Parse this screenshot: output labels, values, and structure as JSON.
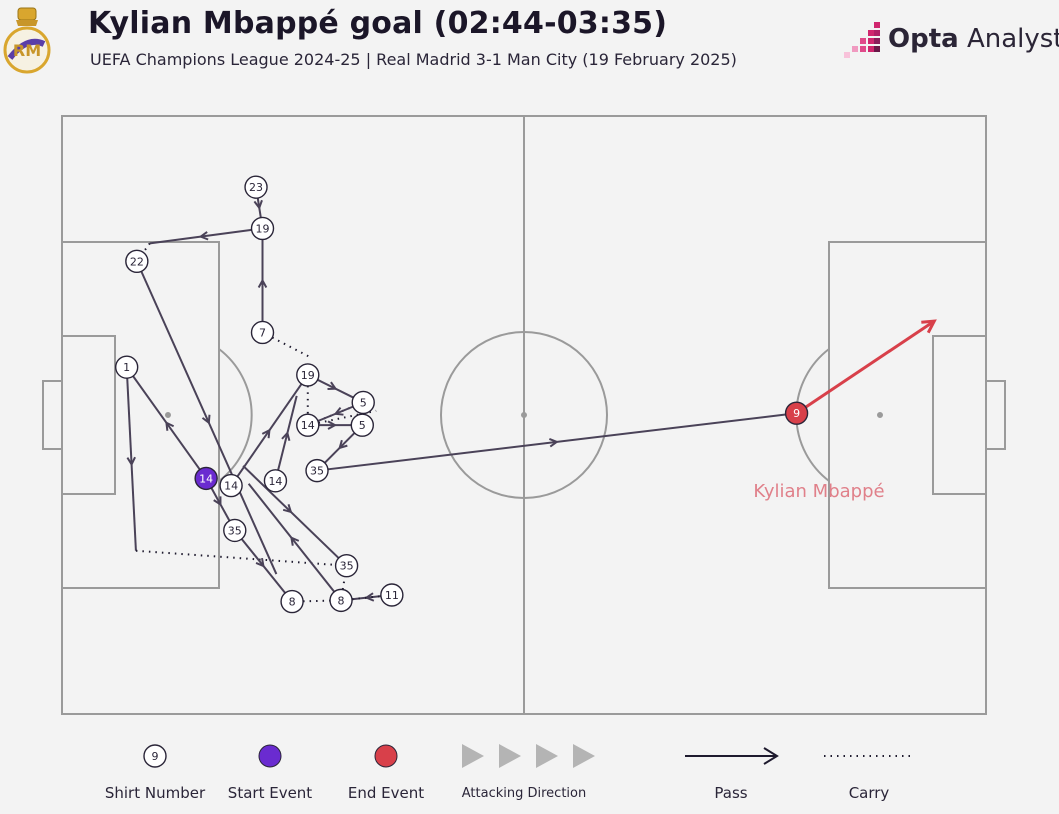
{
  "header": {
    "title": "Kylian Mbappé goal (02:44-03:35)",
    "subtitle": "UEFA Champions League 2024-25 | Real Madrid 3-1 Man City (19 February 2025)",
    "brand_bold": "Opta",
    "brand_light": " Analyst",
    "crest_icon": "real-madrid-crest-icon",
    "brand_icon": "opta-pixel-logo-icon"
  },
  "colors": {
    "background": "#f3f3f3",
    "pitch_lines": "#9a9a9a",
    "pass": "#4a4258",
    "start": "#6a2bd0",
    "end": "#d8404a",
    "end_label": "#e0808a",
    "brand_accent": "#d0266e"
  },
  "pitch": {
    "pitch_length_m": 105,
    "pitch_width_m": 68,
    "attacking_direction": "left-to-right"
  },
  "events": [
    {
      "type": "pass",
      "from": "n23",
      "to": "n19a"
    },
    {
      "type": "pass",
      "from": "n19a",
      "to": "c_left"
    },
    {
      "type": "carry",
      "from": "c_left",
      "to": "n22"
    },
    {
      "type": "pass",
      "from": "n22",
      "to": "p_down22"
    },
    {
      "type": "pass",
      "from": "n7",
      "to": "n19a"
    },
    {
      "type": "carry",
      "from": "n7",
      "to": "p_diag"
    },
    {
      "type": "pass",
      "from": "n1",
      "to": "p_lowleft"
    },
    {
      "type": "carry",
      "from": "p_lowleft",
      "to": "n35b"
    },
    {
      "type": "pass",
      "from": "n14s",
      "to": "n1"
    },
    {
      "type": "pass",
      "from": "n14s",
      "to": "n35a"
    },
    {
      "type": "pass",
      "from": "n35a",
      "to": "n8a"
    },
    {
      "type": "carry",
      "from": "n8a",
      "to": "n8b"
    },
    {
      "type": "pass",
      "from": "n11",
      "to": "n8b"
    },
    {
      "type": "carry",
      "from": "n8b",
      "to": "n11"
    },
    {
      "type": "carry",
      "from": "n8b",
      "to": "n35b"
    },
    {
      "type": "pass",
      "from": "n8b",
      "to": "p_up8"
    },
    {
      "type": "pass",
      "from": "p_8low",
      "to": "n35b"
    },
    {
      "type": "pass",
      "from": "n14b",
      "to": "n19b"
    },
    {
      "type": "pass",
      "from": "n14c",
      "to": "p_14cup"
    },
    {
      "type": "pass",
      "from": "n19b",
      "to": "n5a"
    },
    {
      "type": "carry",
      "from": "n19b",
      "to": "n14d"
    },
    {
      "type": "carry",
      "from": "n14d",
      "to": "n5a"
    },
    {
      "type": "pass",
      "from": "n5a",
      "to": "n14d"
    },
    {
      "type": "pass",
      "from": "n14d",
      "to": "n5b"
    },
    {
      "type": "carry",
      "from": "n14d",
      "to": "p_right5"
    },
    {
      "type": "pass",
      "from": "n5b",
      "to": "n35c"
    },
    {
      "type": "pass",
      "from": "n35c",
      "to": "n9"
    },
    {
      "type": "shot",
      "from": "n9",
      "to": "goal"
    }
  ],
  "nodes": [
    {
      "id": "n23",
      "shirt": "23",
      "x": 21.0,
      "y": 11.9,
      "kind": "normal"
    },
    {
      "id": "n19a",
      "shirt": "19",
      "x": 21.7,
      "y": 18.8,
      "kind": "normal"
    },
    {
      "id": "n22",
      "shirt": "22",
      "x": 8.1,
      "y": 24.3,
      "kind": "normal"
    },
    {
      "id": "n7",
      "shirt": "7",
      "x": 21.7,
      "y": 36.2,
      "kind": "normal"
    },
    {
      "id": "n1",
      "shirt": "1",
      "x": 7.0,
      "y": 42.0,
      "kind": "normal"
    },
    {
      "id": "n19b",
      "shirt": "19",
      "x": 26.6,
      "y": 43.3,
      "kind": "normal"
    },
    {
      "id": "n5a",
      "shirt": "5",
      "x": 32.6,
      "y": 47.9,
      "kind": "normal"
    },
    {
      "id": "n14d",
      "shirt": "14",
      "x": 26.6,
      "y": 51.7,
      "kind": "normal"
    },
    {
      "id": "n5b",
      "shirt": "5",
      "x": 32.5,
      "y": 51.7,
      "kind": "normal"
    },
    {
      "id": "n35c",
      "shirt": "35",
      "x": 27.6,
      "y": 59.3,
      "kind": "normal"
    },
    {
      "id": "n14s",
      "shirt": "14",
      "x": 15.6,
      "y": 60.6,
      "kind": "start"
    },
    {
      "id": "n14b",
      "shirt": "14",
      "x": 18.3,
      "y": 61.8,
      "kind": "normal"
    },
    {
      "id": "n14c",
      "shirt": "14",
      "x": 23.1,
      "y": 61.0,
      "kind": "normal"
    },
    {
      "id": "n35a",
      "shirt": "35",
      "x": 18.7,
      "y": 69.3,
      "kind": "normal"
    },
    {
      "id": "n35b",
      "shirt": "35",
      "x": 30.8,
      "y": 75.2,
      "kind": "normal"
    },
    {
      "id": "n11",
      "shirt": "11",
      "x": 35.7,
      "y": 80.1,
      "kind": "normal"
    },
    {
      "id": "n8a",
      "shirt": "8",
      "x": 24.9,
      "y": 81.2,
      "kind": "normal"
    },
    {
      "id": "n8b",
      "shirt": "8",
      "x": 30.2,
      "y": 81.0,
      "kind": "normal"
    },
    {
      "id": "n9",
      "shirt": "9",
      "x": 79.5,
      "y": 49.7,
      "kind": "end"
    },
    {
      "id": "c_left",
      "x": 9.5,
      "y": 21.3
    },
    {
      "id": "p_down22",
      "x": 23.2,
      "y": 76.6
    },
    {
      "id": "p_diag",
      "x": 26.7,
      "y": 40.2
    },
    {
      "id": "p_lowleft",
      "x": 8.0,
      "y": 72.7
    },
    {
      "id": "p_up8",
      "x": 20.2,
      "y": 61.5
    },
    {
      "id": "p_8low",
      "x": 19.6,
      "y": 58.5
    },
    {
      "id": "p_14cup",
      "x": 25.4,
      "y": 46.8
    },
    {
      "id": "p_right5",
      "x": 34.0,
      "y": 49.3
    },
    {
      "id": "goal",
      "x": 94.4,
      "y": 34.3
    }
  ],
  "scorer_label": "Kylian Mbappé",
  "legend": {
    "shirt_example": "9",
    "shirt_number": "Shirt Number",
    "start_event": "Start Event",
    "end_event": "End Event",
    "attacking_direction": "Attacking Direction",
    "pass": "Pass",
    "carry": "Carry"
  }
}
